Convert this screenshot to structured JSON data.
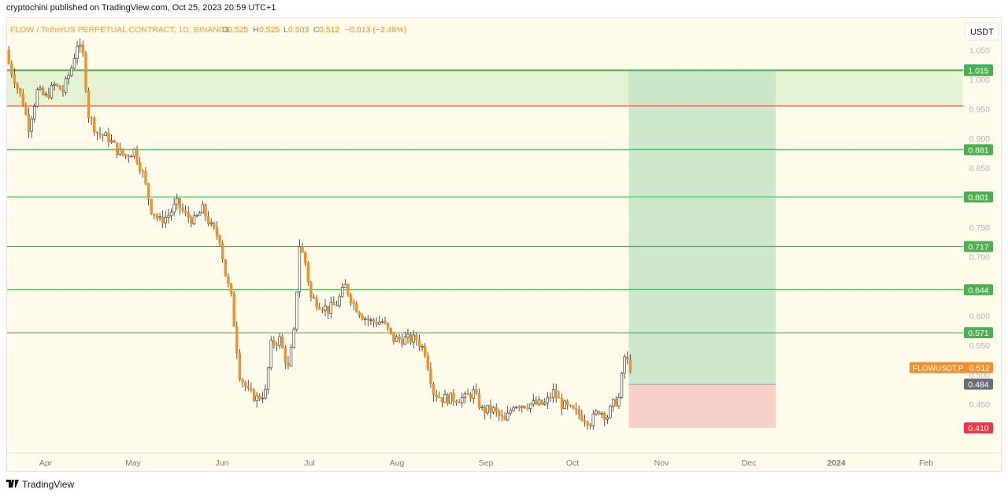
{
  "publisher_line": "cryptochini published on TradingView.com, Oct 25, 2023 20:59 UTC+1",
  "brand": "TradingView",
  "brand_icon": "tradingview-logo-icon",
  "currency_button": "USDT",
  "colors": {
    "background": "#fffbea",
    "up": "#ffffff",
    "down": "#f0912c",
    "wick": "#2b2b2b",
    "level_line": "#4caf50",
    "stop_line": "#f44336",
    "target_zone": "#c8e6c9",
    "stop_zone": "#f8d0c8",
    "price_tag": "#f0912c",
    "upper_tag": "#089981"
  },
  "legend": {
    "symbol": "FLOW / TetherUS PERPETUAL CONTRACT, 1D, BINANCE",
    "open_label": "O",
    "open": "0.525",
    "high_label": "H",
    "high": "0.525",
    "low_label": "L",
    "low": "0.503",
    "close_label": "C",
    "close": "0.512",
    "change": "−0.013 (−2.48%)"
  },
  "chart_data": {
    "type": "candlestick",
    "title": "FLOW / TetherUS PERPETUAL CONTRACT, 1D, BINANCE",
    "xlabel": "",
    "ylabel": "",
    "ylim": [
      0.38,
      1.09
    ],
    "x_tick_labels": [
      "Apr",
      "May",
      "Jun",
      "Jul",
      "Aug",
      "Sep",
      "Oct",
      "Nov",
      "Dec",
      "2024",
      "Feb"
    ],
    "y_tick_labels": [
      "1.050",
      "1.000",
      "0.950",
      "0.900",
      "0.850",
      "0.800",
      "0.750",
      "0.700",
      "0.600",
      "0.550",
      "0.500",
      "0.450"
    ],
    "y_ticks": [
      1.05,
      1.0,
      0.95,
      0.9,
      0.85,
      0.8,
      0.75,
      0.7,
      0.6,
      0.55,
      0.5,
      0.45
    ],
    "horizontal_levels": [
      {
        "value": 1.016,
        "label": "1.016",
        "color": "#4caf50"
      },
      {
        "value": 1.015,
        "label": "1.015",
        "color": "#4caf50"
      },
      {
        "value": 0.955,
        "label": "",
        "color": "#f44336"
      },
      {
        "value": 0.881,
        "label": "0.881",
        "color": "#4caf50"
      },
      {
        "value": 0.801,
        "label": "0.801",
        "color": "#4caf50"
      },
      {
        "value": 0.717,
        "label": "0.717",
        "color": "#4caf50"
      },
      {
        "value": 0.644,
        "label": "0.644",
        "color": "#4caf50"
      },
      {
        "value": 0.571,
        "label": "0.571",
        "color": "#4caf50"
      }
    ],
    "last_price": {
      "label": "FLOWUSDT.P",
      "value": "0.512"
    },
    "position": {
      "entry": 0.484,
      "entry_label": "0.484",
      "stop": 0.41,
      "stop_label": "0.410",
      "target": 1.016,
      "start": "Oct 25",
      "end": "Dec 15"
    },
    "grid": false,
    "closes": [
      {
        "date": "Mar 20",
        "value": 1.04
      },
      {
        "date": "Mar 23",
        "value": 1.0
      },
      {
        "date": "Mar 26",
        "value": 0.96
      },
      {
        "date": "Mar 28",
        "value": 0.92
      },
      {
        "date": "Mar 31",
        "value": 0.98
      },
      {
        "date": "Apr 3",
        "value": 0.97
      },
      {
        "date": "Apr 6",
        "value": 0.99
      },
      {
        "date": "Apr 9",
        "value": 0.98
      },
      {
        "date": "Apr 12",
        "value": 1.02
      },
      {
        "date": "Apr 14",
        "value": 1.06
      },
      {
        "date": "Apr 16",
        "value": 1.04
      },
      {
        "date": "Apr 18",
        "value": 0.94
      },
      {
        "date": "Apr 21",
        "value": 0.91
      },
      {
        "date": "Apr 25",
        "value": 0.9
      },
      {
        "date": "Apr 28",
        "value": 0.88
      },
      {
        "date": "May 1",
        "value": 0.87
      },
      {
        "date": "May 4",
        "value": 0.88
      },
      {
        "date": "May 7",
        "value": 0.84
      },
      {
        "date": "May 10",
        "value": 0.78
      },
      {
        "date": "May 13",
        "value": 0.76
      },
      {
        "date": "May 16",
        "value": 0.77
      },
      {
        "date": "May 19",
        "value": 0.79
      },
      {
        "date": "May 22",
        "value": 0.77
      },
      {
        "date": "May 25",
        "value": 0.76
      },
      {
        "date": "May 28",
        "value": 0.78
      },
      {
        "date": "May 31",
        "value": 0.75
      },
      {
        "date": "Jun 3",
        "value": 0.73
      },
      {
        "date": "Jun 5",
        "value": 0.67
      },
      {
        "date": "Jun 7",
        "value": 0.63
      },
      {
        "date": "Jun 10",
        "value": 0.5
      },
      {
        "date": "Jun 13",
        "value": 0.47
      },
      {
        "date": "Jun 16",
        "value": 0.46
      },
      {
        "date": "Jun 19",
        "value": 0.47
      },
      {
        "date": "Jun 21",
        "value": 0.55
      },
      {
        "date": "Jun 24",
        "value": 0.56
      },
      {
        "date": "Jun 27",
        "value": 0.51
      },
      {
        "date": "Jun 29",
        "value": 0.57
      },
      {
        "date": "Jul 1",
        "value": 0.72
      },
      {
        "date": "Jul 3",
        "value": 0.69
      },
      {
        "date": "Jul 5",
        "value": 0.63
      },
      {
        "date": "Jul 8",
        "value": 0.62
      },
      {
        "date": "Jul 11",
        "value": 0.61
      },
      {
        "date": "Jul 14",
        "value": 0.62
      },
      {
        "date": "Jul 17",
        "value": 0.65
      },
      {
        "date": "Jul 20",
        "value": 0.62
      },
      {
        "date": "Jul 23",
        "value": 0.6
      },
      {
        "date": "Jul 26",
        "value": 0.59
      },
      {
        "date": "Jul 30",
        "value": 0.59
      },
      {
        "date": "Aug 3",
        "value": 0.56
      },
      {
        "date": "Aug 7",
        "value": 0.56
      },
      {
        "date": "Aug 11",
        "value": 0.56
      },
      {
        "date": "Aug 14",
        "value": 0.54
      },
      {
        "date": "Aug 17",
        "value": 0.47
      },
      {
        "date": "Aug 20",
        "value": 0.46
      },
      {
        "date": "Aug 24",
        "value": 0.46
      },
      {
        "date": "Aug 28",
        "value": 0.46
      },
      {
        "date": "Aug 31",
        "value": 0.47
      },
      {
        "date": "Sep 3",
        "value": 0.44
      },
      {
        "date": "Sep 7",
        "value": 0.44
      },
      {
        "date": "Sep 11",
        "value": 0.42
      },
      {
        "date": "Sep 14",
        "value": 0.45
      },
      {
        "date": "Sep 17",
        "value": 0.45
      },
      {
        "date": "Sep 21",
        "value": 0.45
      },
      {
        "date": "Sep 25",
        "value": 0.45
      },
      {
        "date": "Sep 28",
        "value": 0.47
      },
      {
        "date": "Oct 1",
        "value": 0.45
      },
      {
        "date": "Oct 4",
        "value": 0.44
      },
      {
        "date": "Oct 8",
        "value": 0.43
      },
      {
        "date": "Oct 11",
        "value": 0.42
      },
      {
        "date": "Oct 14",
        "value": 0.44
      },
      {
        "date": "Oct 17",
        "value": 0.43
      },
      {
        "date": "Oct 19",
        "value": 0.45
      },
      {
        "date": "Oct 21",
        "value": 0.46
      },
      {
        "date": "Oct 23",
        "value": 0.53
      },
      {
        "date": "Oct 25",
        "value": 0.512
      }
    ]
  }
}
